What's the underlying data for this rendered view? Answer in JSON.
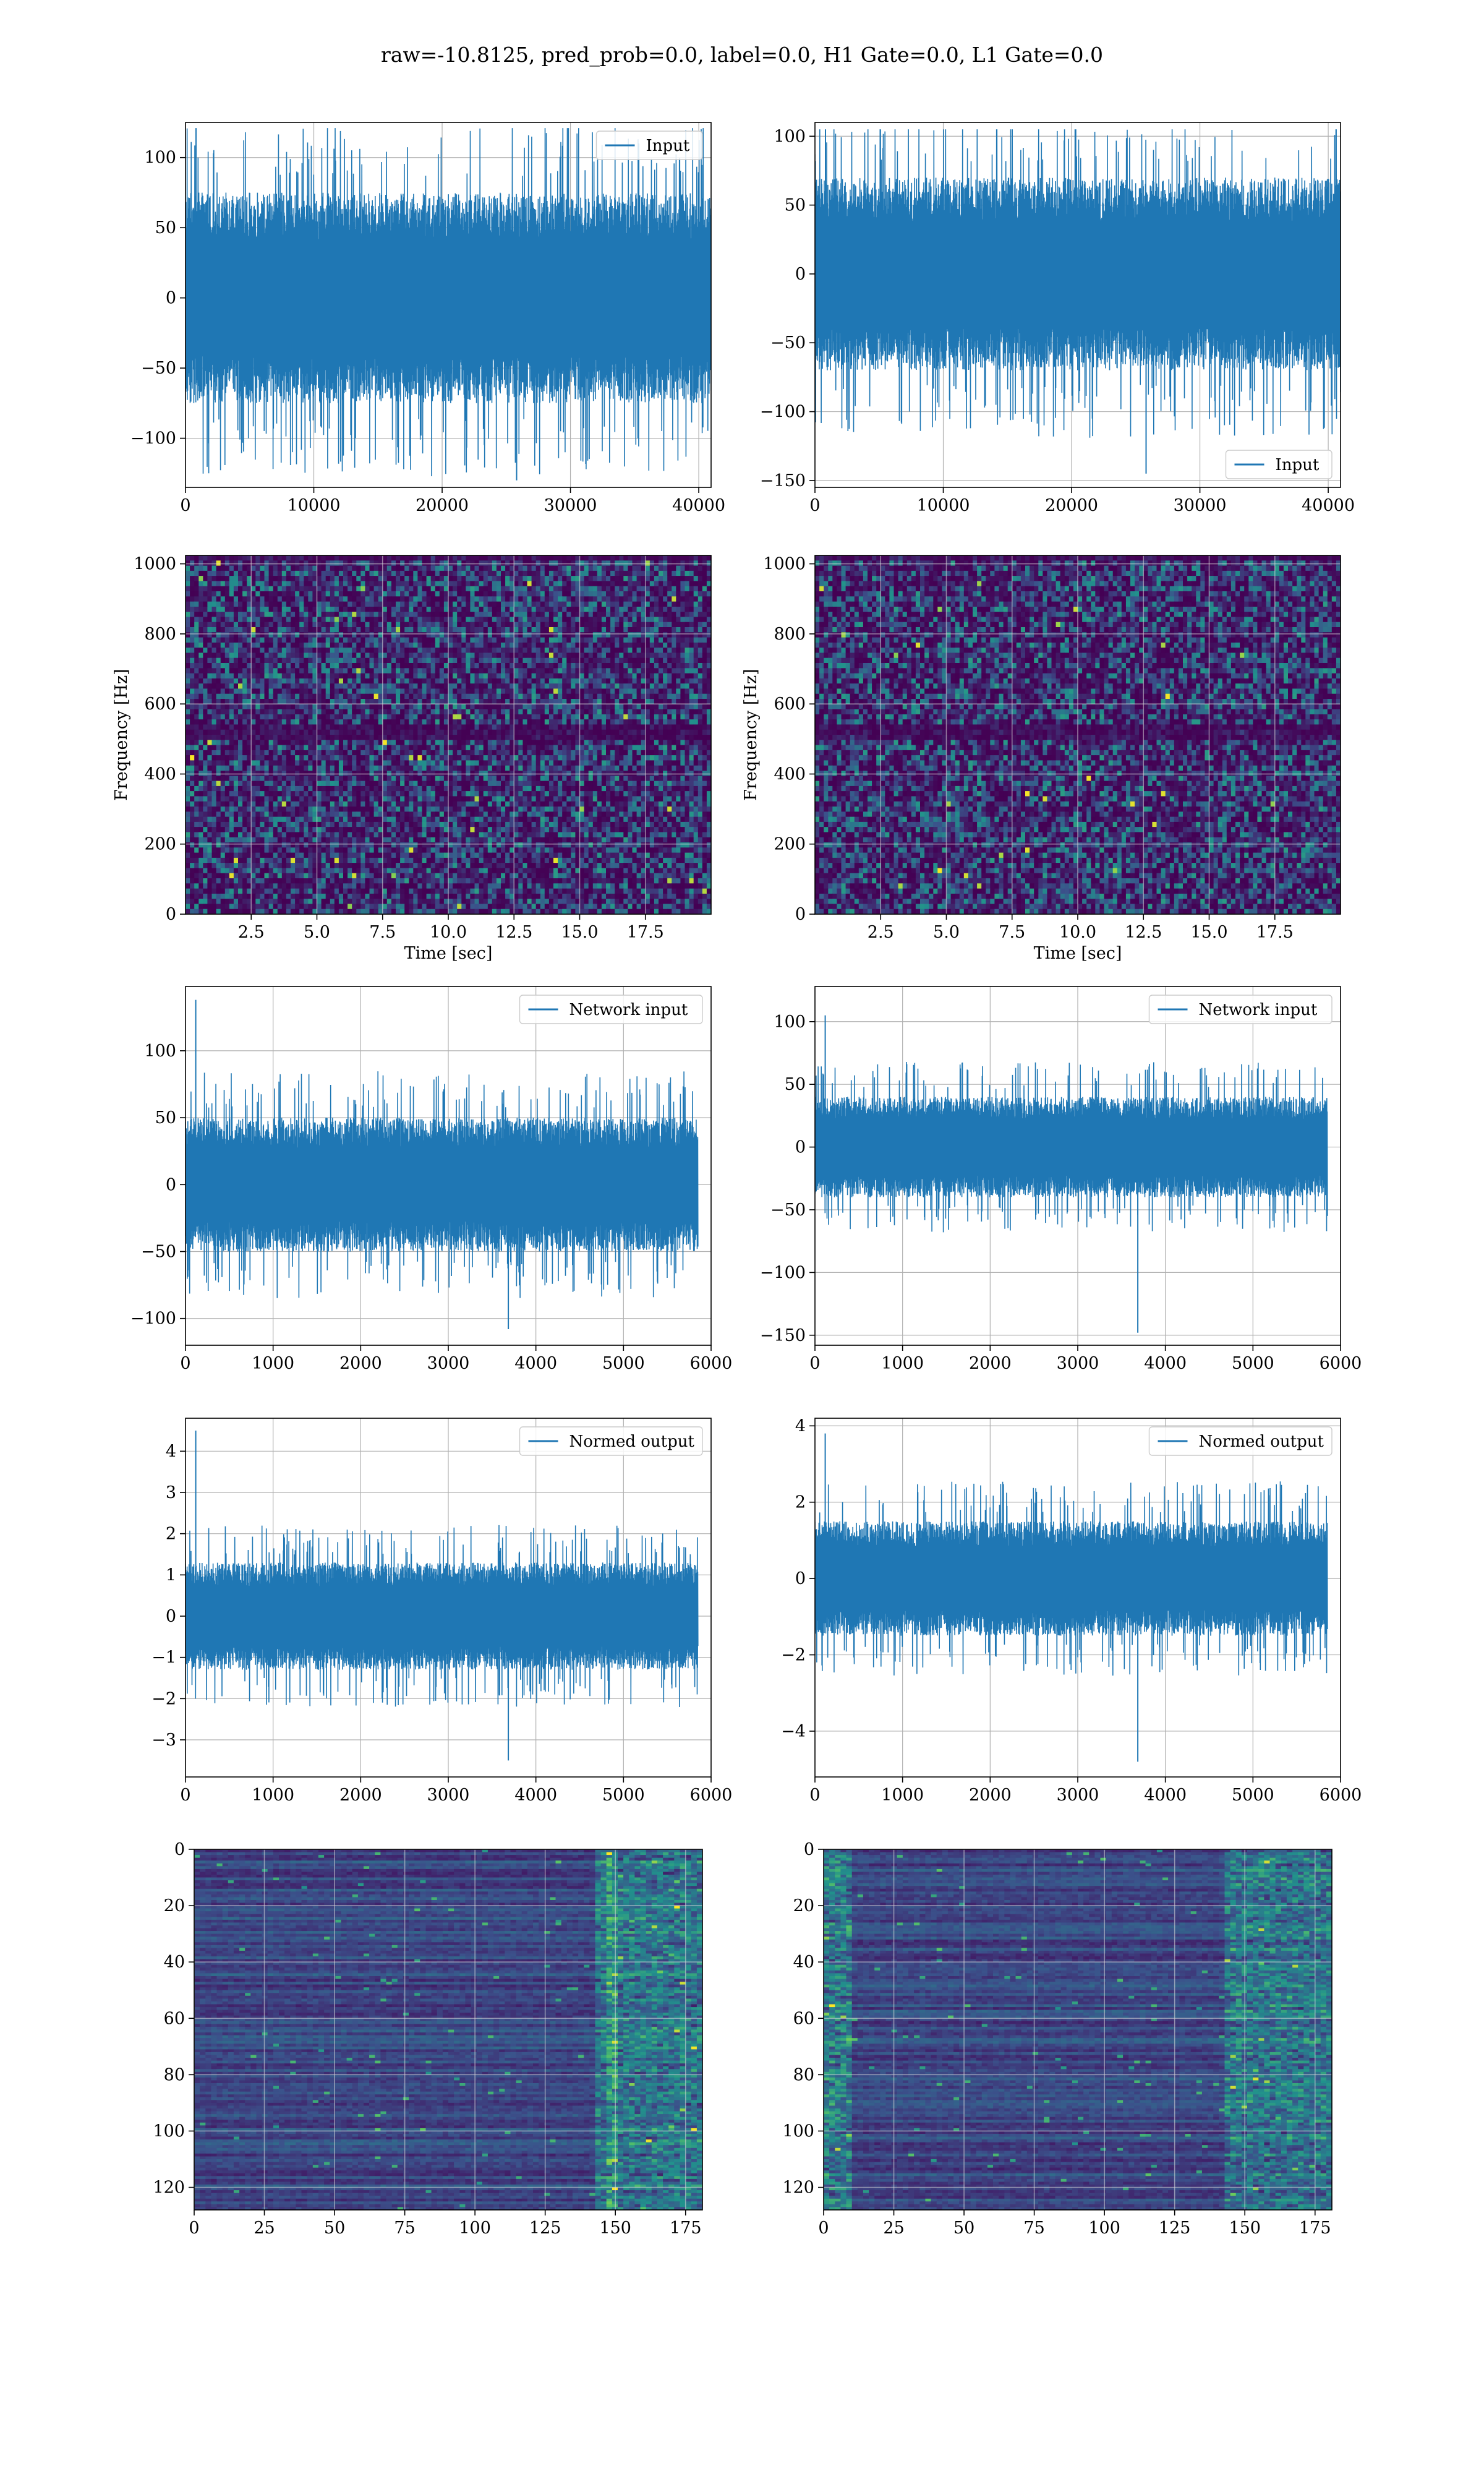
{
  "figure": {
    "suptitle": "raw=-10.8125, pred_prob=0.0, label=0.0, H1 Gate=0.0, L1 Gate=0.0"
  },
  "colors": {
    "series": "#1f77b4",
    "axes": "#000000",
    "grid": "#b0b0b0",
    "viridis_low": "#440154",
    "viridis_high": "#fde725"
  },
  "chart_data": [
    {
      "id": "input-h1",
      "type": "line",
      "xlim": [
        0,
        40960
      ],
      "ylim": [
        -135,
        125
      ],
      "xticks": [
        0,
        10000,
        20000,
        30000,
        40000
      ],
      "yticks": [
        -100,
        -50,
        0,
        50,
        100
      ],
      "xtick_labels": [
        "0",
        "10000",
        "20000",
        "30000",
        "40000"
      ],
      "ytick_labels": [
        "−100",
        "−50",
        "0",
        "50",
        "100"
      ],
      "legend": "Input",
      "legend_loc": "upper-right",
      "series": [
        {
          "name": "Input",
          "n": 40960,
          "band": 75,
          "peak_min": -130,
          "peak_max": 121
        }
      ]
    },
    {
      "id": "input-l1",
      "type": "line",
      "xlim": [
        0,
        40960
      ],
      "ylim": [
        -155,
        110
      ],
      "xticks": [
        0,
        10000,
        20000,
        30000,
        40000
      ],
      "yticks": [
        -150,
        -100,
        -50,
        0,
        50,
        100
      ],
      "xtick_labels": [
        "0",
        "10000",
        "20000",
        "30000",
        "40000"
      ],
      "ytick_labels": [
        "−150",
        "−100",
        "−50",
        "0",
        "50",
        "100"
      ],
      "legend": "Input",
      "legend_loc": "lower-right",
      "series": [
        {
          "name": "Input",
          "n": 40960,
          "band": 70,
          "peak_min": -145,
          "peak_max": 105
        }
      ]
    },
    {
      "id": "spec-h1",
      "type": "heatmap",
      "xlim": [
        0,
        20
      ],
      "ylim": [
        0,
        1024
      ],
      "xticks": [
        2.5,
        5,
        7.5,
        10,
        12.5,
        15,
        17.5
      ],
      "yticks": [
        0,
        200,
        400,
        600,
        800,
        1000
      ],
      "xtick_labels": [
        "2.5",
        "5.0",
        "7.5",
        "10.0",
        "12.5",
        "15.0",
        "17.5"
      ],
      "ytick_labels": [
        "0",
        "200",
        "400",
        "600",
        "800",
        "1000"
      ],
      "xlabel": "Time [sec]",
      "ylabel": "Frequency [Hz]",
      "grid": true
    },
    {
      "id": "spec-l1",
      "type": "heatmap",
      "xlim": [
        0,
        20
      ],
      "ylim": [
        0,
        1024
      ],
      "xticks": [
        2.5,
        5,
        7.5,
        10,
        12.5,
        15,
        17.5
      ],
      "yticks": [
        0,
        200,
        400,
        600,
        800,
        1000
      ],
      "xtick_labels": [
        "2.5",
        "5.0",
        "7.5",
        "10.0",
        "12.5",
        "15.0",
        "17.5"
      ],
      "ytick_labels": [
        "0",
        "200",
        "400",
        "600",
        "800",
        "1000"
      ],
      "xlabel": "Time [sec]",
      "ylabel": "Frequency [Hz]",
      "grid": true
    },
    {
      "id": "net-h1",
      "type": "line",
      "xlim": [
        0,
        6000
      ],
      "ylim": [
        -120,
        148
      ],
      "xticks": [
        0,
        1000,
        2000,
        3000,
        4000,
        5000,
        6000
      ],
      "yticks": [
        -100,
        -50,
        0,
        50,
        100
      ],
      "xtick_labels": [
        "0",
        "1000",
        "2000",
        "3000",
        "4000",
        "5000",
        "6000"
      ],
      "ytick_labels": [
        "−100",
        "−50",
        "0",
        "50",
        "100"
      ],
      "legend": "Network input",
      "legend_loc": "upper-right",
      "series": [
        {
          "name": "Network input",
          "n": 5850,
          "band": 50,
          "peak_min": -108,
          "peak_max": 138
        }
      ]
    },
    {
      "id": "net-l1",
      "type": "line",
      "xlim": [
        0,
        6000
      ],
      "ylim": [
        -158,
        128
      ],
      "xticks": [
        0,
        1000,
        2000,
        3000,
        4000,
        5000,
        6000
      ],
      "yticks": [
        -150,
        -100,
        -50,
        0,
        50,
        100
      ],
      "xtick_labels": [
        "0",
        "1000",
        "2000",
        "3000",
        "4000",
        "5000",
        "6000"
      ],
      "ytick_labels": [
        "−150",
        "−100",
        "−50",
        "0",
        "50",
        "100"
      ],
      "legend": "Network input",
      "legend_loc": "upper-right",
      "series": [
        {
          "name": "Network input",
          "n": 5850,
          "band": 40,
          "peak_min": -148,
          "peak_max": 105
        }
      ]
    },
    {
      "id": "norm-h1",
      "type": "line",
      "xlim": [
        0,
        6000
      ],
      "ylim": [
        -3.9,
        4.8
      ],
      "xticks": [
        0,
        1000,
        2000,
        3000,
        4000,
        5000,
        6000
      ],
      "yticks": [
        -3,
        -2,
        -1,
        0,
        1,
        2,
        3,
        4
      ],
      "xtick_labels": [
        "0",
        "1000",
        "2000",
        "3000",
        "4000",
        "5000",
        "6000"
      ],
      "ytick_labels": [
        "−3",
        "−2",
        "−1",
        "0",
        "1",
        "2",
        "3",
        "4"
      ],
      "legend": "Normed output",
      "legend_loc": "upper-right",
      "series": [
        {
          "name": "Normed output",
          "n": 5850,
          "band": 1.3,
          "peak_min": -3.5,
          "peak_max": 4.5
        }
      ]
    },
    {
      "id": "norm-l1",
      "type": "line",
      "xlim": [
        0,
        6000
      ],
      "ylim": [
        -5.2,
        4.2
      ],
      "xticks": [
        0,
        1000,
        2000,
        3000,
        4000,
        5000,
        6000
      ],
      "yticks": [
        -4,
        -2,
        0,
        2,
        4
      ],
      "xtick_labels": [
        "0",
        "1000",
        "2000",
        "3000",
        "4000",
        "5000",
        "6000"
      ],
      "ytick_labels": [
        "−4",
        "−2",
        "0",
        "2",
        "4"
      ],
      "legend": "Normed output",
      "legend_loc": "upper-right",
      "series": [
        {
          "name": "Normed output",
          "n": 5850,
          "band": 1.5,
          "peak_min": -4.8,
          "peak_max": 3.8
        }
      ]
    },
    {
      "id": "map-h1",
      "type": "heatmap",
      "xlim": [
        0,
        181
      ],
      "ylim": [
        128,
        0
      ],
      "xticks": [
        0,
        25,
        50,
        75,
        100,
        125,
        150,
        175
      ],
      "yticks": [
        0,
        20,
        40,
        60,
        80,
        100,
        120
      ],
      "xtick_labels": [
        "0",
        "25",
        "50",
        "75",
        "100",
        "125",
        "150",
        "175"
      ],
      "ytick_labels": [
        "0",
        "20",
        "40",
        "60",
        "80",
        "100",
        "120"
      ],
      "grid": true
    },
    {
      "id": "map-l1",
      "type": "heatmap",
      "xlim": [
        0,
        181
      ],
      "ylim": [
        128,
        0
      ],
      "xticks": [
        0,
        25,
        50,
        75,
        100,
        125,
        150,
        175
      ],
      "yticks": [
        0,
        20,
        40,
        60,
        80,
        100,
        120
      ],
      "xtick_labels": [
        "0",
        "25",
        "50",
        "75",
        "100",
        "125",
        "150",
        "175"
      ],
      "ytick_labels": [
        "0",
        "20",
        "40",
        "60",
        "80",
        "100",
        "120"
      ],
      "grid": true
    }
  ]
}
